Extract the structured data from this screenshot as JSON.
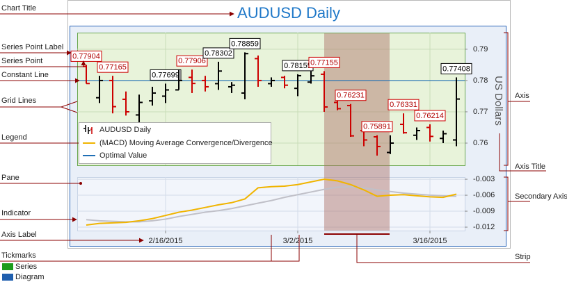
{
  "chart_data": {
    "type": "ohlc",
    "title": "AUDUSD Daily",
    "categories": [
      null,
      null,
      null,
      null,
      null,
      null,
      "2/16/2015",
      null,
      null,
      null,
      null,
      null,
      null,
      null,
      null,
      null,
      "3/2/2015",
      null,
      null,
      null,
      null,
      null,
      null,
      null,
      null,
      null,
      "3/16/2015",
      null,
      null
    ],
    "series": [
      {
        "name": "AUDUSD Daily",
        "rise_color": "#000000",
        "fall_color": "#cc0000",
        "open": [
          0.7845,
          0.7745,
          0.78,
          0.774,
          0.769,
          0.7735,
          0.775,
          0.777,
          0.781,
          0.78,
          0.779,
          0.778,
          0.776,
          0.787,
          0.779,
          0.781,
          0.7775,
          0.7795,
          0.782,
          0.773,
          0.772,
          0.764,
          0.762,
          0.757,
          0.766,
          0.7625,
          0.765,
          0.7615,
          0.761
        ],
        "high": [
          0.785,
          0.7815,
          0.7815,
          0.7765,
          0.7755,
          0.778,
          0.779,
          0.7835,
          0.7835,
          0.7815,
          0.786,
          0.7795,
          0.789,
          0.788,
          0.781,
          0.7815,
          0.782,
          0.783,
          0.783,
          0.774,
          0.7725,
          0.765,
          0.7625,
          0.7625,
          0.7695,
          0.765,
          0.766,
          0.764,
          0.781
        ],
        "low": [
          0.779,
          0.7728,
          0.7695,
          0.7688,
          0.7665,
          0.772,
          0.7728,
          0.777,
          0.776,
          0.7765,
          0.777,
          0.776,
          0.774,
          0.778,
          0.778,
          0.7775,
          0.775,
          0.779,
          0.77,
          0.7705,
          0.762,
          0.759,
          0.756,
          0.7565,
          0.763,
          0.761,
          0.7605,
          0.76,
          0.759
        ],
        "close": [
          0.77904,
          0.78,
          0.77165,
          0.77,
          0.773,
          0.776,
          0.77699,
          0.78,
          0.77906,
          0.778,
          0.78302,
          0.7785,
          0.78859,
          0.78,
          0.78,
          0.7785,
          0.78155,
          0.7815,
          0.77155,
          0.771,
          0.76231,
          0.761,
          0.75891,
          0.76,
          0.76331,
          0.764,
          0.76214,
          0.763,
          0.77408
        ],
        "value_labels": [
          "0.77904",
          null,
          "0.77165",
          null,
          null,
          null,
          "0.77699",
          null,
          "0.77906",
          null,
          "0.78302",
          null,
          "0.78859",
          null,
          null,
          null,
          "0.78155",
          null,
          "0.77155",
          null,
          "0.76231",
          null,
          "0.75891",
          null,
          "0.76331",
          null,
          "0.76214",
          null,
          "0.77408"
        ]
      }
    ],
    "indicator": {
      "name": "(MACD) Moving Average Convergence/Divergence",
      "color": "#f0b400",
      "signal_color": "#c0c0c8",
      "values": [
        -0.0116,
        -0.0113,
        -0.0112,
        -0.0111,
        -0.0108,
        -0.0104,
        -0.0098,
        -0.0092,
        -0.0088,
        -0.0083,
        -0.0078,
        -0.0074,
        -0.0067,
        -0.0046,
        -0.0044,
        -0.0043,
        -0.004,
        -0.0035,
        -0.003,
        -0.0033,
        -0.004,
        -0.005,
        -0.0062,
        -0.006,
        -0.0059,
        -0.0061,
        -0.0063,
        -0.0064,
        -0.0058
      ],
      "signal_values": [
        -0.0106,
        -0.0108,
        -0.0109,
        -0.011,
        -0.011,
        -0.0108,
        -0.0105,
        -0.01,
        -0.0096,
        -0.0092,
        -0.0089,
        -0.0085,
        -0.008,
        -0.0075,
        -0.007,
        -0.0064,
        -0.0059,
        -0.0054,
        -0.0049,
        -0.0045,
        -0.0044,
        -0.0046,
        -0.005,
        -0.0053,
        -0.0056,
        -0.0058,
        -0.006,
        -0.0061,
        -0.0062
      ]
    },
    "constant_line": {
      "name": "Optimal Value",
      "value": 0.78,
      "color": "#1f6fb5"
    },
    "ylim": [
      0.7529,
      0.7953
    ],
    "yticks": [
      0.76,
      0.77,
      0.78,
      0.79
    ],
    "y_title": "US Dollars",
    "y2lim": [
      -0.01265,
      -0.0026
    ],
    "y2ticks": [
      -0.012,
      -0.009,
      -0.006,
      -0.003
    ],
    "grid": true,
    "legend": "bottom-left"
  },
  "callouts": {
    "left": [
      "Chart Title",
      "Series Point Label",
      "Series Point",
      "Constant Line",
      "Grid Lines",
      "Legend",
      "Pane",
      "Indicator",
      "Axis Label",
      "Tickmarks"
    ],
    "right": [
      "Axis",
      "Axis Title",
      "Secondary Axis",
      "Strip"
    ]
  },
  "key": [
    {
      "label": "Series",
      "color": "#1c9c1c"
    },
    {
      "label": "Diagram",
      "color": "#1f5fae"
    }
  ]
}
